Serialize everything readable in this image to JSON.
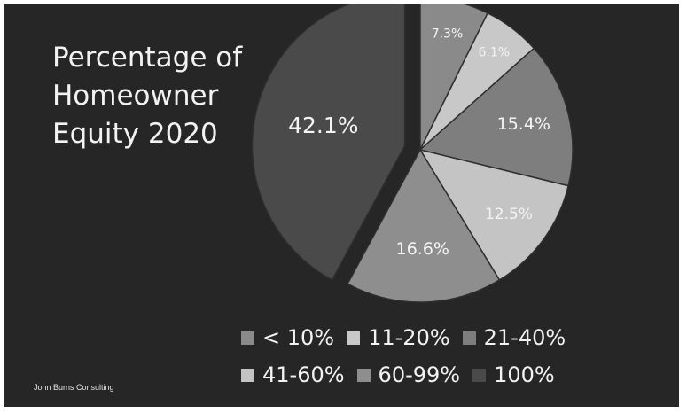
{
  "chart_data": {
    "type": "pie",
    "title_lines": [
      "Percentage of",
      "Homeowner",
      "Equity 2020"
    ],
    "categories": [
      "< 10%",
      "11-20%",
      "21-40%",
      "41-60%",
      "60-99%",
      "100%"
    ],
    "values": [
      7.3,
      6.1,
      15.4,
      12.5,
      16.6,
      42.1
    ],
    "value_labels": [
      "7.3%",
      "6.1%",
      "15.4%",
      "12.5%",
      "16.6%",
      "42.1%"
    ],
    "colors": [
      "#8a8a8a",
      "#c8c8c8",
      "#7e7e7e",
      "#c4c4c4",
      "#8e8e8e",
      "#4a4a4a"
    ],
    "exploded": [
      "100%"
    ],
    "legend_position": "bottom-right",
    "legend_rows": [
      [
        "< 10%",
        "11-20%",
        "21-40%"
      ],
      [
        "41-60%",
        "60-99%",
        "100%"
      ]
    ]
  },
  "source": "John Burns Consulting",
  "theme": {
    "background": "#262626",
    "text": "#f2f2f2",
    "slice_border": "#2e2e2e"
  }
}
